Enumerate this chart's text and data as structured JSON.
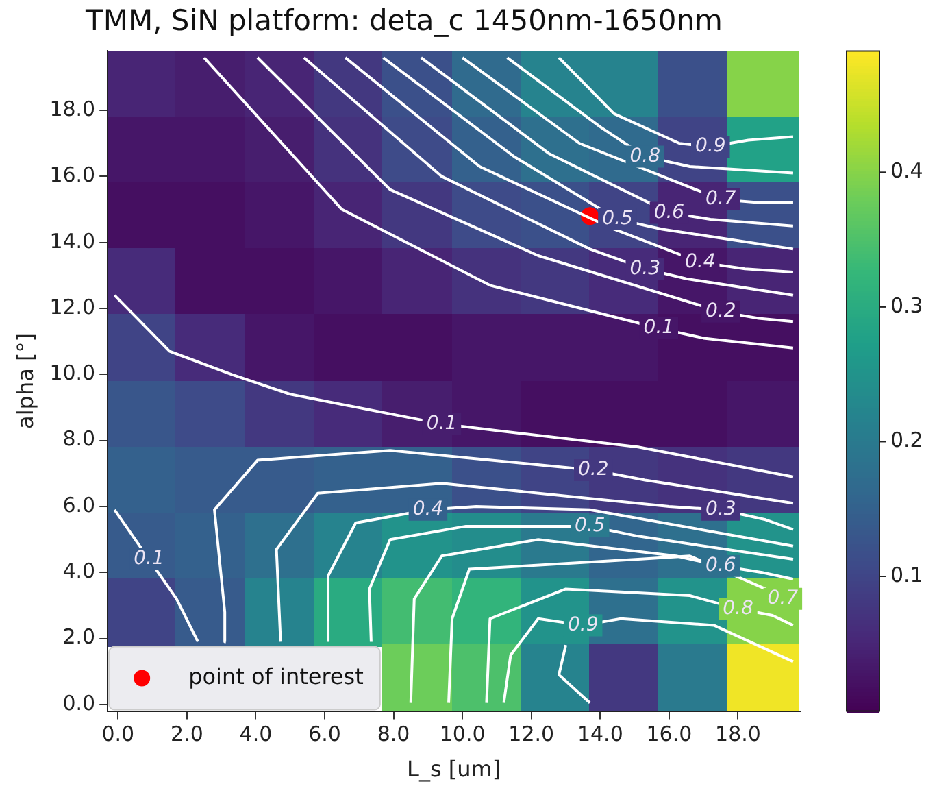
{
  "chart_data": {
    "type": "heatmap",
    "title": "TMM, SiN platform: deta_c 1450nm-1650nm",
    "xlabel": "L_s [um]",
    "ylabel": "alpha [°]",
    "x": [
      0.7,
      2.7,
      4.7,
      6.7,
      8.7,
      10.7,
      12.7,
      14.7,
      16.7,
      18.7
    ],
    "y": [
      18.8,
      16.8,
      14.8,
      12.8,
      10.8,
      8.8,
      6.8,
      4.8,
      2.8,
      0.8
    ],
    "cells": [
      [
        0.05,
        0.04,
        0.05,
        0.08,
        0.12,
        0.17,
        0.22,
        0.22,
        0.12,
        0.4
      ],
      [
        0.03,
        0.03,
        0.04,
        0.07,
        0.11,
        0.15,
        0.18,
        0.17,
        0.1,
        0.28
      ],
      [
        0.02,
        0.02,
        0.03,
        0.05,
        0.08,
        0.11,
        0.12,
        0.1,
        0.05,
        0.12
      ],
      [
        0.06,
        0.02,
        0.02,
        0.03,
        0.05,
        0.07,
        0.08,
        0.06,
        0.03,
        0.05
      ],
      [
        0.1,
        0.06,
        0.03,
        0.02,
        0.02,
        0.03,
        0.03,
        0.03,
        0.02,
        0.02
      ],
      [
        0.13,
        0.11,
        0.08,
        0.06,
        0.04,
        0.03,
        0.02,
        0.02,
        0.02,
        0.03
      ],
      [
        0.15,
        0.14,
        0.14,
        0.15,
        0.15,
        0.12,
        0.1,
        0.08,
        0.07,
        0.08
      ],
      [
        0.14,
        0.15,
        0.18,
        0.22,
        0.25,
        0.24,
        0.2,
        0.16,
        0.18,
        0.25
      ],
      [
        0.1,
        0.14,
        0.22,
        0.3,
        0.34,
        0.32,
        0.25,
        0.18,
        0.25,
        0.4
      ],
      [
        null,
        null,
        null,
        null,
        0.38,
        0.35,
        0.22,
        0.08,
        0.2,
        0.48
      ]
    ],
    "clim": [
      0,
      0.49
    ],
    "cticks": [
      0.1,
      0.2,
      0.3,
      0.4
    ],
    "xlim": [
      -0.3,
      19.8
    ],
    "ylim": [
      -0.2,
      19.8
    ],
    "xticks": [
      {
        "value": 0,
        "label": "0.0"
      },
      {
        "value": 2,
        "label": "2.0"
      },
      {
        "value": 4,
        "label": "4.0"
      },
      {
        "value": 6,
        "label": "6.0"
      },
      {
        "value": 8,
        "label": "8.0"
      },
      {
        "value": 10,
        "label": "10.0"
      },
      {
        "value": 12,
        "label": "12.0"
      },
      {
        "value": 14,
        "label": "14.0"
      },
      {
        "value": 16,
        "label": "16.0"
      },
      {
        "value": 18,
        "label": "18.0"
      }
    ],
    "yticks": [
      {
        "value": 0,
        "label": "0.0"
      },
      {
        "value": 2,
        "label": "2.0"
      },
      {
        "value": 4,
        "label": "4.0"
      },
      {
        "value": 6,
        "label": "6.0"
      },
      {
        "value": 8,
        "label": "8.0"
      },
      {
        "value": 10,
        "label": "10.0"
      },
      {
        "value": 12,
        "label": "12.0"
      },
      {
        "value": 14,
        "label": "14.0"
      },
      {
        "value": 16,
        "label": "16.0"
      },
      {
        "value": 18,
        "label": "18.0"
      }
    ],
    "series": [
      {
        "type": "line",
        "color": "#ffffff",
        "x": [
          2.5,
          6.5,
          10.8,
          15.7,
          17.0,
          19.6
        ],
        "values": [
          19.6,
          15.0,
          12.7,
          11.4,
          11.1,
          10.8
        ]
      },
      {
        "type": "line",
        "color": "#ffffff",
        "x": [
          4.05,
          7.9,
          12.2,
          17.5,
          18.6,
          19.6
        ],
        "values": [
          19.6,
          15.6,
          13.6,
          11.9,
          11.7,
          11.6
        ]
      },
      {
        "type": "line",
        "color": "#ffffff",
        "x": [
          5.4,
          9.4,
          13.7,
          15.3,
          16.5,
          19.6
        ],
        "values": [
          19.6,
          16.0,
          13.8,
          13.2,
          12.9,
          12.4
        ]
      },
      {
        "type": "line",
        "color": "#ffffff",
        "x": [
          6.6,
          10.5,
          14.4,
          16.9,
          18.2,
          19.6
        ],
        "values": [
          19.6,
          16.3,
          14.4,
          13.4,
          13.2,
          13.1
        ]
      },
      {
        "type": "line",
        "color": "#ffffff",
        "x": [
          7.7,
          11.5,
          14.5,
          15.8,
          19.6
        ],
        "values": [
          19.6,
          16.6,
          14.7,
          14.4,
          13.8
        ]
      },
      {
        "type": "line",
        "color": "#ffffff",
        "x": [
          8.8,
          12.5,
          16.0,
          17.2,
          19.6
        ],
        "values": [
          19.6,
          16.7,
          14.9,
          14.7,
          14.5
        ]
      },
      {
        "type": "line",
        "color": "#ffffff",
        "x": [
          10.0,
          13.4,
          17.5,
          18.7,
          19.6
        ],
        "values": [
          19.6,
          17.0,
          15.3,
          15.2,
          15.2
        ]
      },
      {
        "type": "line",
        "color": "#ffffff",
        "x": [
          11.3,
          14.0,
          15.3,
          16.6,
          19.6
        ],
        "values": [
          19.6,
          17.5,
          16.6,
          16.3,
          16.1
        ]
      },
      {
        "type": "line",
        "color": "#ffffff",
        "x": [
          12.8,
          14.4,
          16.3,
          17.2,
          18.3,
          19.6
        ],
        "values": [
          19.6,
          17.9,
          17.0,
          16.9,
          17.1,
          17.2
        ]
      },
      {
        "type": "line",
        "color": "#ffffff",
        "x": [
          -0.1,
          1.5,
          3.3,
          5.0,
          9.4,
          11.0,
          15.1,
          19.6
        ],
        "values": [
          12.4,
          10.7,
          10.0,
          9.4,
          8.5,
          8.3,
          7.8,
          6.9
        ]
      },
      {
        "type": "line",
        "color": "#ffffff",
        "x": [
          3.13,
          3.1,
          2.8,
          4.05,
          7.9,
          13.8,
          15.3,
          19.6
        ],
        "values": [
          1.9,
          2.8,
          5.9,
          7.4,
          7.7,
          7.1,
          6.8,
          6.1
        ]
      },
      {
        "type": "line",
        "color": "#ffffff",
        "x": [
          4.72,
          4.6,
          5.8,
          9.4,
          16.0,
          17.5,
          18.8,
          19.6
        ],
        "values": [
          1.9,
          4.7,
          6.4,
          6.7,
          6.0,
          5.9,
          5.6,
          5.3
        ]
      },
      {
        "type": "line",
        "color": "#ffffff",
        "x": [
          6.1,
          6.1,
          6.9,
          9.0,
          10.4,
          13.7,
          19.6
        ],
        "values": [
          1.9,
          3.9,
          5.5,
          5.9,
          6.0,
          5.9,
          4.8
        ]
      },
      {
        "type": "line",
        "color": "#ffffff",
        "x": [
          7.35,
          7.3,
          7.9,
          10.1,
          13.7,
          15.1,
          19.6
        ],
        "values": [
          1.9,
          3.5,
          5.0,
          5.4,
          5.4,
          5.1,
          4.4
        ]
      },
      {
        "type": "line",
        "color": "#ffffff",
        "x": [
          8.5,
          8.6,
          9.4,
          12.2,
          16.2,
          17.5,
          18.7,
          19.6
        ],
        "values": [
          0.05,
          3.2,
          4.5,
          5.0,
          4.5,
          4.2,
          4.0,
          3.8
        ]
      },
      {
        "type": "line",
        "color": "#ffffff",
        "x": [
          9.6,
          9.7,
          10.2,
          15.1,
          16.6,
          18.8,
          19.3
        ],
        "values": [
          0.05,
          2.6,
          4.1,
          4.4,
          4.5,
          3.5,
          3.2
        ]
      },
      {
        "type": "line",
        "color": "#ffffff",
        "x": [
          10.7,
          10.8,
          13.0,
          16.6,
          18.0,
          19.0,
          19.6
        ],
        "values": [
          0.05,
          2.6,
          3.5,
          3.3,
          2.9,
          2.7,
          2.4
        ]
      },
      {
        "type": "line",
        "color": "#ffffff",
        "x": [
          11.2,
          11.4,
          12.2,
          13.5,
          14.6,
          17.3,
          19.6
        ],
        "values": [
          0.05,
          1.5,
          2.6,
          2.4,
          2.6,
          2.4,
          1.3
        ]
      },
      {
        "type": "line",
        "color": "#ffffff",
        "x": [
          13.0,
          12.8,
          13.7
        ],
        "values": [
          1.8,
          0.9,
          0.05
        ]
      },
      {
        "type": "line",
        "color": "#ffffff",
        "x": [
          -0.1,
          0.9,
          1.7,
          2.32
        ],
        "values": [
          5.9,
          4.4,
          3.2,
          1.9
        ]
      },
      {
        "type": "scatter",
        "name": "point of interest",
        "color": "#ff0000",
        "x": [
          13.7
        ],
        "values": [
          14.8
        ]
      }
    ],
    "annotations": [
      {
        "text": "0.1",
        "x": 15.7,
        "y": 11.4
      },
      {
        "text": "0.2",
        "x": 17.5,
        "y": 11.9
      },
      {
        "text": "0.3",
        "x": 15.3,
        "y": 13.2
      },
      {
        "text": "0.4",
        "x": 16.9,
        "y": 13.4
      },
      {
        "text": "0.5",
        "x": 14.5,
        "y": 14.7
      },
      {
        "text": "0.6",
        "x": 16.0,
        "y": 14.9
      },
      {
        "text": "0.7",
        "x": 17.5,
        "y": 15.3
      },
      {
        "text": "0.8",
        "x": 15.3,
        "y": 16.6
      },
      {
        "text": "0.9",
        "x": 17.2,
        "y": 16.9
      },
      {
        "text": "0.1",
        "x": 9.4,
        "y": 8.5
      },
      {
        "text": "0.2",
        "x": 13.8,
        "y": 7.1
      },
      {
        "text": "0.3",
        "x": 17.5,
        "y": 5.9
      },
      {
        "text": "0.4",
        "x": 9.0,
        "y": 5.9
      },
      {
        "text": "0.5",
        "x": 13.7,
        "y": 5.4
      },
      {
        "text": "0.6",
        "x": 17.5,
        "y": 4.2
      },
      {
        "text": "0.7",
        "x": 19.3,
        "y": 3.2
      },
      {
        "text": "0.8",
        "x": 18.0,
        "y": 2.9
      },
      {
        "text": "0.9",
        "x": 13.5,
        "y": 2.4
      },
      {
        "text": "0.1",
        "x": 0.9,
        "y": 4.4
      }
    ],
    "legend": "bottom left"
  }
}
